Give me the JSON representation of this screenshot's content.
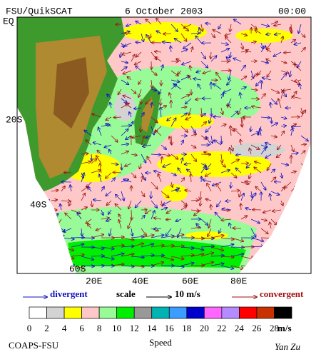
{
  "header": {
    "source": "FSU/QuikSCAT",
    "date": "6 October 2003",
    "time": "00:00"
  },
  "lat_labels": [
    "EQ",
    "20S",
    "40S",
    "60S"
  ],
  "lon_labels": [
    "20E",
    "40E",
    "60E",
    "80E"
  ],
  "legend": {
    "divergent": "divergent",
    "scale": "scale",
    "scale_value": "10 m/s",
    "convergent": "convergent",
    "divergent_color": "#1010c0",
    "convergent_color": "#a01010"
  },
  "colorbar": {
    "colors": [
      "#ffffff",
      "#d3d3d3",
      "#ffff00",
      "#ffc8c8",
      "#98fb98",
      "#00ee00",
      "#999999",
      "#00b4b4",
      "#3c9cff",
      "#0000cd",
      "#ff66ff",
      "#b48cff",
      "#ff0000",
      "#c83200",
      "#000000"
    ],
    "ticks": [
      0,
      2,
      4,
      6,
      8,
      10,
      12,
      14,
      16,
      18,
      20,
      22,
      24,
      26,
      28
    ],
    "unit": "m/s",
    "title": "Speed"
  },
  "footer": {
    "left": "COAPS-FSU",
    "right": "Yan Zu"
  }
}
